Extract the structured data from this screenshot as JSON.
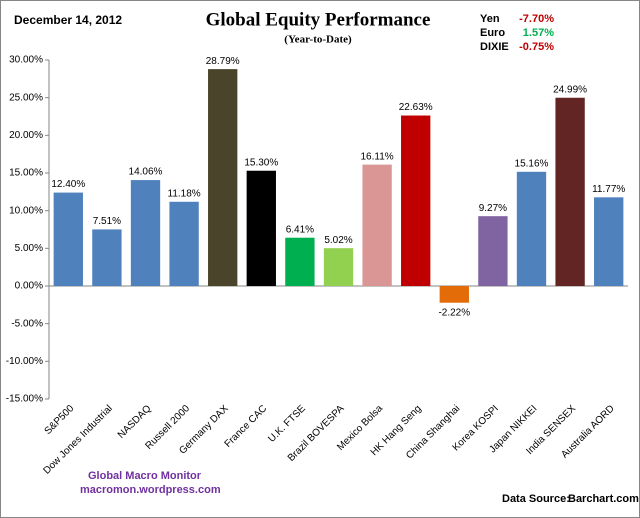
{
  "chart_data": {
    "type": "bar",
    "date": "December 14, 2012",
    "title": "Global Equity Performance",
    "subtitle": "(Year-to-Date)",
    "currencies": [
      {
        "name": "Yen",
        "value": "-7.70%",
        "color": "#c00000"
      },
      {
        "name": "Euro",
        "value": "1.57%",
        "color": "#00b050"
      },
      {
        "name": "DIXIE",
        "value": "-0.75%",
        "color": "#c00000"
      }
    ],
    "categories": [
      "S&P500",
      "Dow Jones Industrial",
      "NASDAQ",
      "Russell 2000",
      "Germany DAX",
      "France CAC",
      "U.K. FTSE",
      "Brazil BOVESPA",
      "Mexico Bolsa",
      "HK Hang Seng",
      "China Shanghai",
      "Korea KOSPI",
      "Japan NIKKEI",
      "India SENSEX",
      "Australia AORD"
    ],
    "values": [
      12.4,
      7.51,
      14.06,
      11.18,
      28.79,
      15.3,
      6.41,
      5.02,
      16.11,
      22.63,
      -2.22,
      9.27,
      15.16,
      24.99,
      11.77
    ],
    "value_labels": [
      "12.40%",
      "7.51%",
      "14.06%",
      "11.18%",
      "28.79%",
      "15.30%",
      "6.41%",
      "5.02%",
      "16.11%",
      "22.63%",
      "-2.22%",
      "9.27%",
      "15.16%",
      "24.99%",
      "11.77%"
    ],
    "colors": [
      "#4f81bd",
      "#4f81bd",
      "#4f81bd",
      "#4f81bd",
      "#4a442a",
      "#000000",
      "#00b050",
      "#92d050",
      "#d99694",
      "#c00000",
      "#e36c09",
      "#8064a2",
      "#4f81bd",
      "#632523",
      "#4f81bd"
    ],
    "ylim": [
      -15,
      30
    ],
    "yticks": [
      {
        "value": -15,
        "label": "-15.00%"
      },
      {
        "value": -10,
        "label": "-10.00%"
      },
      {
        "value": -5,
        "label": "-5.00%"
      },
      {
        "value": 0,
        "label": "0.00%"
      },
      {
        "value": 5,
        "label": "5.00%"
      },
      {
        "value": 10,
        "label": "10.00%"
      },
      {
        "value": 15,
        "label": "15.00%"
      },
      {
        "value": 20,
        "label": "20.00%"
      },
      {
        "value": 25,
        "label": "25.00%"
      },
      {
        "value": 30,
        "label": "30.00%"
      }
    ],
    "grid": false,
    "footer_left": [
      "Global Macro Monitor",
      "macromon.wordpress.com"
    ],
    "source_label": "Data Source:",
    "source": "Barchart.com"
  }
}
